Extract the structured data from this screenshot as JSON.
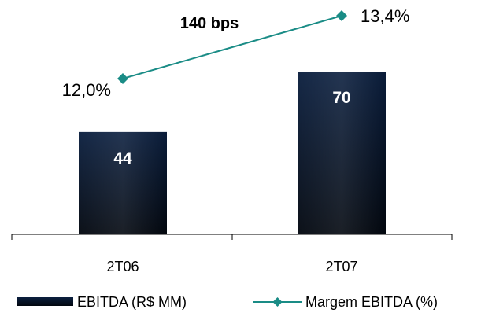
{
  "chart_data": {
    "type": "bar",
    "categories": [
      "2T06",
      "2T07"
    ],
    "series": [
      {
        "name": "EBITDA (R$ MM)",
        "type": "bar",
        "values": [
          44,
          70
        ],
        "value_labels": [
          "44",
          "70"
        ],
        "color_top": "#0b1f3f",
        "color_bottom": "#02070f"
      },
      {
        "name": "Margem EBITDA (%)",
        "type": "line",
        "values": [
          12.0,
          13.4
        ],
        "value_labels": [
          "12,0%",
          "13,4%"
        ],
        "color": "#1a8c86"
      }
    ],
    "annotation": "140 bps",
    "title": "",
    "xlabel": "",
    "ylabel": "",
    "grid": false,
    "legend_position": "bottom"
  }
}
